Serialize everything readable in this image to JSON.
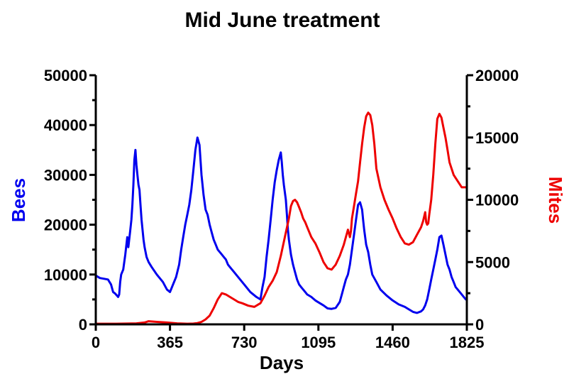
{
  "chart_data": {
    "type": "line",
    "title": "Mid June treatment",
    "xlabel": "Days",
    "ylabel_left": "Bees",
    "ylabel_right": "Mites",
    "xlim": [
      0,
      1825
    ],
    "ylim_left": [
      0,
      50000
    ],
    "ylim_right": [
      0,
      20000
    ],
    "x_ticks": [
      0,
      365,
      730,
      1095,
      1460,
      1825
    ],
    "y_left_ticks": [
      0,
      10000,
      20000,
      30000,
      40000,
      50000
    ],
    "y_right_ticks": [
      0,
      5000,
      10000,
      15000,
      20000
    ],
    "grid": false,
    "legend": "none",
    "colors": {
      "bees": "#0000ee",
      "mites": "#ee0000",
      "axis": "#000000"
    },
    "series": [
      {
        "name": "Bees",
        "axis": "left",
        "color": "#0000ee",
        "x": [
          0,
          20,
          60,
          75,
          85,
          95,
          110,
          115,
          120,
          125,
          135,
          145,
          155,
          160,
          170,
          175,
          180,
          185,
          190,
          195,
          200,
          205,
          210,
          215,
          220,
          225,
          230,
          235,
          240,
          245,
          250,
          260,
          275,
          300,
          330,
          350,
          365,
          380,
          395,
          410,
          420,
          430,
          440,
          450,
          460,
          470,
          480,
          490,
          500,
          510,
          520,
          530,
          540,
          550,
          560,
          570,
          580,
          590,
          600,
          610,
          620,
          630,
          640,
          650,
          660,
          670,
          680,
          700,
          730,
          760,
          790,
          810,
          820,
          830,
          840,
          850,
          860,
          870,
          880,
          890,
          900,
          910,
          915,
          920,
          925,
          930,
          935,
          940,
          945,
          950,
          960,
          970,
          980,
          990,
          1000,
          1010,
          1020,
          1030,
          1040,
          1060,
          1080,
          1100,
          1120,
          1140,
          1160,
          1180,
          1200,
          1210,
          1220,
          1230,
          1240,
          1250,
          1260,
          1270,
          1280,
          1290,
          1300,
          1310,
          1315,
          1320,
          1325,
          1330,
          1340,
          1350,
          1360,
          1380,
          1400,
          1430,
          1460,
          1490,
          1520,
          1540,
          1560,
          1580,
          1600,
          1610,
          1620,
          1630,
          1640,
          1650,
          1660,
          1670,
          1680,
          1690,
          1700,
          1710,
          1720,
          1730,
          1740,
          1750,
          1760,
          1770,
          1790,
          1810,
          1820
        ],
        "values": [
          9800,
          9300,
          9000,
          8000,
          6500,
          6200,
          5500,
          6000,
          8500,
          10000,
          11000,
          14000,
          17500,
          15500,
          19000,
          21000,
          24000,
          28000,
          33000,
          35000,
          32000,
          30000,
          28000,
          27000,
          24000,
          21000,
          19000,
          17000,
          15500,
          14500,
          13500,
          12500,
          11500,
          10000,
          8500,
          7000,
          6500,
          8000,
          9500,
          12000,
          15000,
          17500,
          20000,
          22000,
          24000,
          27000,
          31000,
          35000,
          37500,
          36000,
          30000,
          26000,
          23000,
          22000,
          20000,
          18500,
          17000,
          16000,
          15000,
          14500,
          14000,
          13500,
          13000,
          12000,
          11500,
          11000,
          10500,
          9500,
          8000,
          6500,
          5500,
          5000,
          7500,
          9500,
          13500,
          17000,
          21000,
          25000,
          28500,
          31000,
          33000,
          34500,
          32500,
          30000,
          28000,
          26500,
          25000,
          22000,
          19000,
          17000,
          14000,
          12000,
          10500,
          9000,
          8000,
          7500,
          7000,
          6500,
          6000,
          5500,
          4800,
          4300,
          3800,
          3200,
          3100,
          3300,
          4500,
          6000,
          7500,
          9000,
          10000,
          12000,
          15000,
          18000,
          21000,
          24000,
          24500,
          23000,
          21000,
          19000,
          17500,
          16000,
          14500,
          12000,
          10000,
          8500,
          7000,
          5800,
          4800,
          4000,
          3500,
          3000,
          2500,
          2300,
          2600,
          3000,
          3800,
          5000,
          7000,
          9000,
          11000,
          13000,
          15000,
          17500,
          17800,
          16000,
          14000,
          12000,
          11000,
          9500,
          8500,
          7500,
          6500,
          5500,
          5000
        ]
      },
      {
        "name": "Mites",
        "axis": "right",
        "color": "#ee0000",
        "x": [
          0,
          100,
          200,
          240,
          260,
          300,
          350,
          400,
          450,
          480,
          500,
          520,
          540,
          560,
          580,
          600,
          620,
          640,
          660,
          680,
          700,
          720,
          750,
          780,
          810,
          830,
          850,
          870,
          890,
          910,
          930,
          950,
          960,
          970,
          980,
          990,
          1000,
          1010,
          1020,
          1030,
          1040,
          1050,
          1060,
          1080,
          1100,
          1120,
          1140,
          1160,
          1180,
          1200,
          1220,
          1230,
          1240,
          1250,
          1255,
          1260,
          1270,
          1280,
          1290,
          1300,
          1310,
          1320,
          1330,
          1340,
          1350,
          1360,
          1370,
          1380,
          1400,
          1420,
          1440,
          1460,
          1480,
          1500,
          1520,
          1540,
          1560,
          1580,
          1600,
          1610,
          1620,
          1625,
          1630,
          1635,
          1640,
          1650,
          1660,
          1670,
          1680,
          1690,
          1700,
          1710,
          1720,
          1730,
          1740,
          1760,
          1780,
          1800,
          1820
        ],
        "values": [
          50,
          50,
          80,
          150,
          250,
          200,
          150,
          80,
          50,
          60,
          100,
          200,
          400,
          700,
          1300,
          2000,
          2500,
          2400,
          2200,
          2000,
          1800,
          1700,
          1500,
          1400,
          1700,
          2300,
          3000,
          3500,
          4200,
          5500,
          7000,
          8500,
          9500,
          9900,
          10000,
          9800,
          9400,
          9000,
          8500,
          8200,
          7800,
          7400,
          7000,
          6500,
          5800,
          5000,
          4500,
          4400,
          4800,
          5500,
          6400,
          7000,
          7600,
          7000,
          7500,
          8500,
          9500,
          10500,
          11500,
          13000,
          14500,
          15800,
          16700,
          17000,
          16800,
          16000,
          14500,
          12500,
          11000,
          10000,
          9200,
          8500,
          7700,
          7000,
          6500,
          6400,
          6600,
          7200,
          7800,
          8300,
          9000,
          8200,
          8000,
          8100,
          8800,
          10000,
          12000,
          14500,
          16500,
          16900,
          16600,
          15800,
          15000,
          14000,
          13000,
          12000,
          11500,
          11000,
          11000
        ]
      }
    ]
  }
}
